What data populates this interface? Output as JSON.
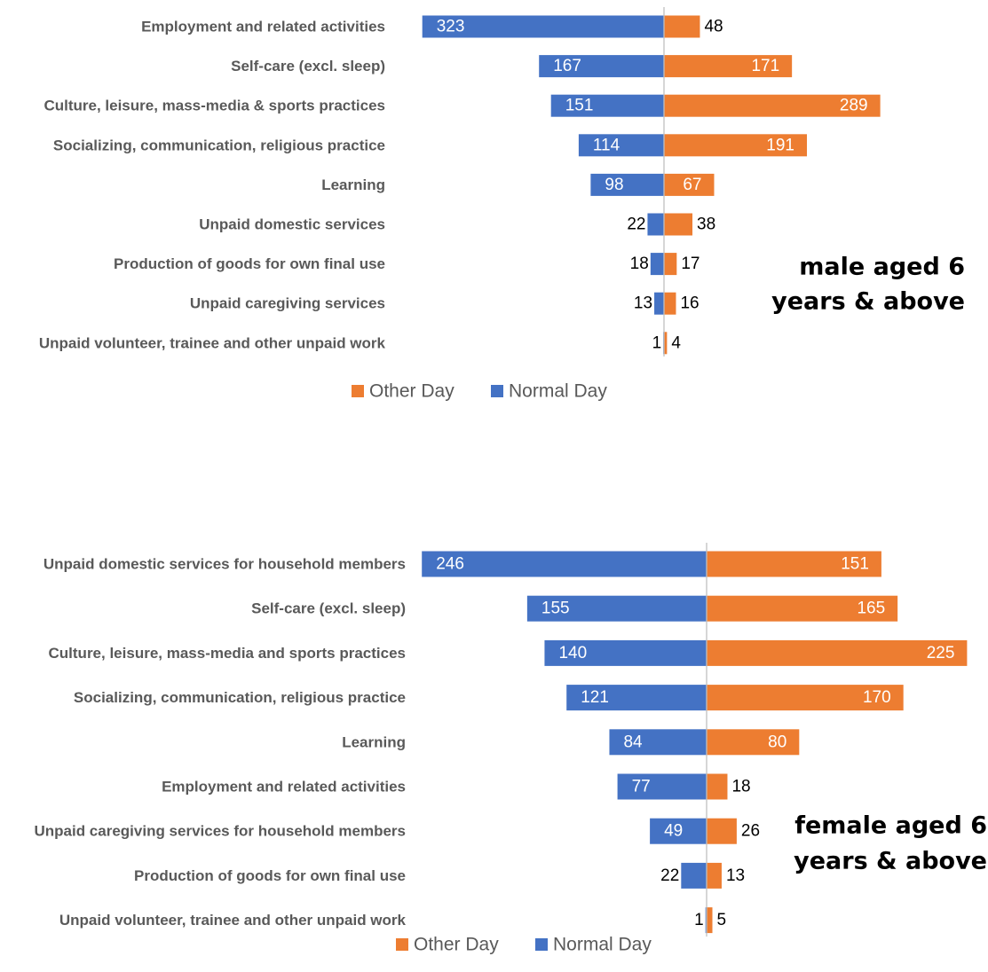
{
  "colors": {
    "normal_day": "#4472C4",
    "other_day": "#ED7D31",
    "axis": "#BFBFBF",
    "label": "#595959"
  },
  "chart_data": [
    {
      "type": "bar",
      "orientation": "horizontal-diverging",
      "title": "male aged 6 years & above",
      "title_lines": [
        "male aged 6",
        "years & above"
      ],
      "categories": [
        "Employment and related activities",
        "Self-care (excl. sleep)",
        "Culture, leisure, mass-media & sports practices",
        "Socializing, communication, religious practice",
        "Learning",
        "Unpaid domestic services",
        "Production of goods for own final use",
        "Unpaid caregiving services",
        "Unpaid volunteer, trainee and other unpaid work"
      ],
      "series": [
        {
          "name": "Normal Day",
          "side": "left",
          "values": [
            323,
            167,
            151,
            114,
            98,
            22,
            18,
            13,
            1
          ]
        },
        {
          "name": "Other Day",
          "side": "right",
          "values": [
            48,
            171,
            289,
            191,
            67,
            38,
            17,
            16,
            4
          ]
        }
      ],
      "legend": [
        "Other Day",
        "Normal Day"
      ],
      "legend_position": "bottom"
    },
    {
      "type": "bar",
      "orientation": "horizontal-diverging",
      "title": "female aged 6 years & above",
      "title_lines": [
        "female aged 6",
        "years & above"
      ],
      "categories": [
        "Unpaid domestic services for household members",
        "Self-care (excl. sleep)",
        "Culture, leisure, mass-media and sports practices",
        "Socializing, communication, religious practice",
        "Learning",
        "Employment and related activities",
        "Unpaid caregiving services for household members",
        "Production of goods for own final use",
        "Unpaid volunteer, trainee and other unpaid work"
      ],
      "series": [
        {
          "name": "Normal Day",
          "side": "left",
          "values": [
            246,
            155,
            140,
            121,
            84,
            77,
            49,
            22,
            1
          ]
        },
        {
          "name": "Other Day",
          "side": "right",
          "values": [
            151,
            165,
            225,
            170,
            80,
            18,
            26,
            13,
            5
          ]
        }
      ],
      "legend": [
        "Other Day",
        "Normal Day"
      ],
      "legend_position": "bottom"
    }
  ]
}
